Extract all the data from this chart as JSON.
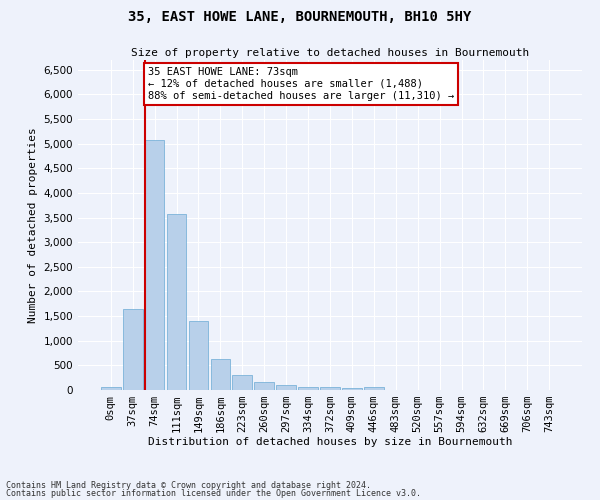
{
  "title": "35, EAST HOWE LANE, BOURNEMOUTH, BH10 5HY",
  "subtitle": "Size of property relative to detached houses in Bournemouth",
  "xlabel": "Distribution of detached houses by size in Bournemouth",
  "ylabel": "Number of detached properties",
  "bar_color": "#b8d0ea",
  "bar_edge_color": "#6aaad4",
  "background_color": "#eef2fb",
  "grid_color": "#ffffff",
  "annotation_box_text": "35 EAST HOWE LANE: 73sqm\n← 12% of detached houses are smaller (1,488)\n88% of semi-detached houses are larger (11,310) →",
  "annotation_box_color": "#ffffff",
  "annotation_box_edge_color": "#cc0000",
  "marker_line_color": "#cc0000",
  "categories": [
    "0sqm",
    "37sqm",
    "74sqm",
    "111sqm",
    "149sqm",
    "186sqm",
    "223sqm",
    "260sqm",
    "297sqm",
    "334sqm",
    "372sqm",
    "409sqm",
    "446sqm",
    "483sqm",
    "520sqm",
    "557sqm",
    "594sqm",
    "632sqm",
    "669sqm",
    "706sqm",
    "743sqm"
  ],
  "values": [
    70,
    1640,
    5080,
    3580,
    1400,
    620,
    300,
    155,
    100,
    60,
    55,
    45,
    55,
    0,
    0,
    0,
    0,
    0,
    0,
    0,
    0
  ],
  "ylim": [
    0,
    6700
  ],
  "yticks": [
    0,
    500,
    1000,
    1500,
    2000,
    2500,
    3000,
    3500,
    4000,
    4500,
    5000,
    5500,
    6000,
    6500
  ],
  "footnote1": "Contains HM Land Registry data © Crown copyright and database right 2024.",
  "footnote2": "Contains public sector information licensed under the Open Government Licence v3.0."
}
